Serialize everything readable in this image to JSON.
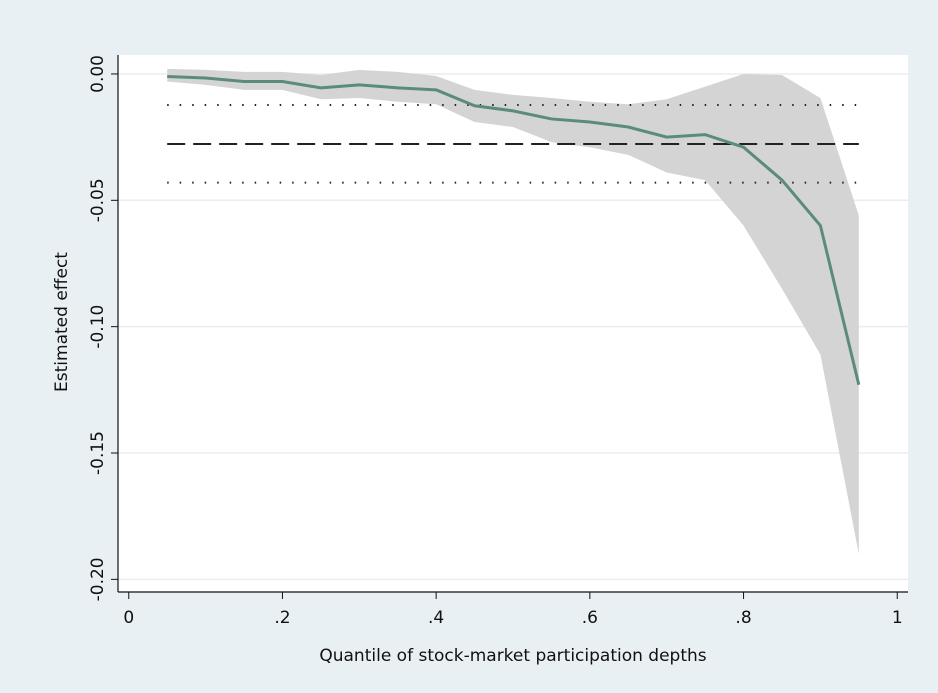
{
  "chart_data": {
    "type": "quantile-band",
    "x_label": "Quantile of stock-market participation depths",
    "y_label": "Estimated effect",
    "x": [
      0.05,
      0.1,
      0.15,
      0.2,
      0.25,
      0.3,
      0.35,
      0.4,
      0.45,
      0.5,
      0.55,
      0.6,
      0.65,
      0.7,
      0.75,
      0.8,
      0.85,
      0.9,
      0.95
    ],
    "values": [
      -0.001,
      -0.0016,
      -0.003,
      -0.003,
      -0.0055,
      -0.0043,
      -0.0055,
      -0.0063,
      -0.0126,
      -0.0146,
      -0.0178,
      -0.019,
      -0.021,
      -0.025,
      -0.024,
      -0.029,
      -0.042,
      -0.06,
      -0.123
    ],
    "ci_upper": [
      0.002,
      0.0016,
      0.0008,
      0.0008,
      -0.0004,
      0.0016,
      0.0008,
      -0.0008,
      -0.0063,
      -0.0083,
      -0.0095,
      -0.011,
      -0.012,
      -0.01,
      -0.005,
      0.0,
      -0.0004,
      -0.0095,
      -0.056
    ],
    "ci_lower": [
      -0.003,
      -0.0043,
      -0.0063,
      -0.0063,
      -0.01,
      -0.0095,
      -0.011,
      -0.012,
      -0.019,
      -0.021,
      -0.027,
      -0.029,
      -0.032,
      -0.039,
      -0.042,
      -0.06,
      -0.085,
      -0.111,
      -0.19
    ],
    "ols_estimate": -0.0277,
    "ols_ci": [
      -0.0123,
      -0.043
    ],
    "line_color": "#5b8c7a",
    "band_color": "#d4d4d4",
    "ref_color": "#222222",
    "xlim": [
      -0.014,
      1.014
    ],
    "ylim": [
      -0.205,
      0.0075
    ],
    "xticks": [
      0,
      {
        "value": 0.2,
        "label": ".2"
      },
      {
        "value": 0.4,
        "label": ".4"
      },
      {
        "value": 0.6,
        "label": ".6"
      },
      {
        "value": 0.8,
        "label": ".8"
      },
      1
    ],
    "yticks": [
      {
        "value": 0,
        "label": "0.00"
      },
      {
        "value": -0.05,
        "label": "-0.05"
      },
      {
        "value": -0.1,
        "label": "-0.10"
      },
      {
        "value": -0.15,
        "label": "-0.15"
      },
      {
        "value": -0.2,
        "label": "-0.20"
      }
    ],
    "grid": true
  }
}
